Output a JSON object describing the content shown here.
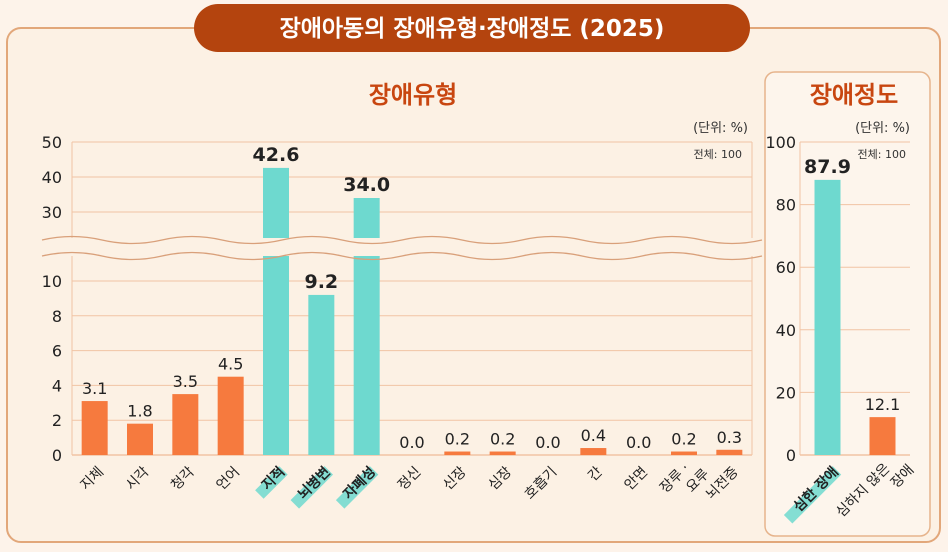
{
  "title": "장애아동의 장애유형·장애정도 (2025)",
  "colors": {
    "background": "#fdf3ea",
    "panel": "#fcf1e4",
    "panel_border": "#e2a77a",
    "title_banner": "#b4440e",
    "heading": "#c84610",
    "grid": "#f1c4a4",
    "teal": "#6ed9cf",
    "orange": "#f67a3e"
  },
  "chart_data": [
    {
      "type": "bar",
      "title": "장애유형",
      "unit": "(단위: %)",
      "total_note": "전체: 100",
      "axis_break": true,
      "yticks_lower": [
        "0",
        "2",
        "4",
        "6",
        "8",
        "10"
      ],
      "yticks_upper": [
        "30",
        "40",
        "50"
      ],
      "categories": [
        "지체",
        "시각",
        "청각",
        "언어",
        "지적",
        "뇌병변",
        "자폐성",
        "정신",
        "신장",
        "심장",
        "호흡기",
        "간",
        "안면",
        "장루 · 요루",
        "뇌전증"
      ],
      "values": [
        3.1,
        1.8,
        3.5,
        4.5,
        42.6,
        9.2,
        34.0,
        0.0,
        0.2,
        0.2,
        0.0,
        0.4,
        0.0,
        0.2,
        0.3
      ],
      "value_labels": [
        "3.1",
        "1.8",
        "3.5",
        "4.5",
        "42.6",
        "9.2",
        "34.0",
        "0.0",
        "0.2",
        "0.2",
        "0.0",
        "0.4",
        "0.0",
        "0.2",
        "0.3"
      ],
      "highlight": [
        false,
        false,
        false,
        false,
        true,
        true,
        true,
        false,
        false,
        false,
        false,
        false,
        false,
        false,
        false
      ]
    },
    {
      "type": "bar",
      "title": "장애정도",
      "unit": "(단위: %)",
      "total_note": "전체: 100",
      "ylim": [
        0,
        100
      ],
      "yticks": [
        "0",
        "20",
        "40",
        "60",
        "80",
        "100"
      ],
      "categories": [
        "심한 장애",
        "심하지 않은 장애"
      ],
      "values": [
        87.9,
        12.1
      ],
      "value_labels": [
        "87.9",
        "12.1"
      ],
      "highlight": [
        true,
        false
      ]
    }
  ]
}
